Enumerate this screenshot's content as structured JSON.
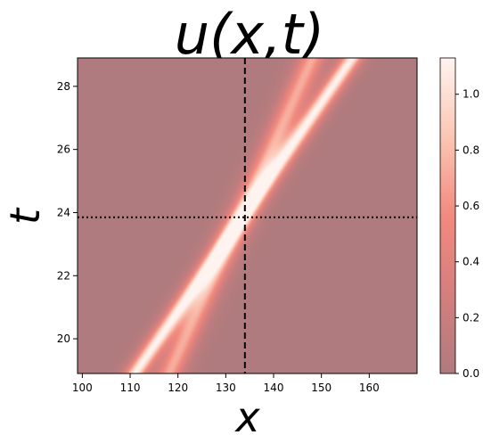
{
  "chart_data": {
    "type": "heatmap",
    "title": "u(x,t)",
    "xlabel": "x",
    "ylabel": "t",
    "xlim": [
      99,
      170
    ],
    "ylim": [
      18.9,
      28.9
    ],
    "x_ticks": [
      "100",
      "110",
      "120",
      "130",
      "140",
      "150",
      "160"
    ],
    "y_ticks": [
      "20",
      "22",
      "24",
      "26",
      "28"
    ],
    "colorbar": {
      "range": [
        0.0,
        1.13
      ],
      "ticks": [
        "0.0",
        "0.2",
        "0.4",
        "0.6",
        "0.8",
        "1.0"
      ],
      "colormap": "Reds (semi-transparent)"
    },
    "reference_lines": {
      "vertical_dashed_x": 134,
      "horizontal_dotted_t": 23.85
    },
    "solitons": [
      {
        "amplitude": 1.13,
        "width": 1.95,
        "speed": 4.55,
        "x_at_t_ref": 133.5
      },
      {
        "amplitude": 0.73,
        "width": 2.45,
        "speed": 3.0,
        "x_at_t_ref": 133.0
      }
    ],
    "t_ref": 23.85,
    "colors": {
      "low": "#b07b7e",
      "high": "#fff3ef",
      "mid": "#f28a7e"
    }
  }
}
